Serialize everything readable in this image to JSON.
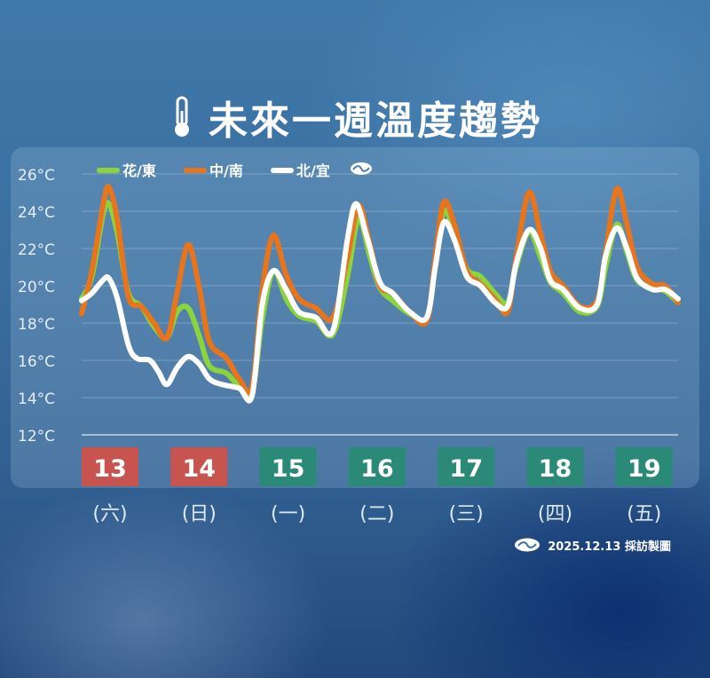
{
  "title": "未來一週溫度趨勢",
  "legend": [
    {
      "label": "花/東",
      "color": "#8cd43c"
    },
    {
      "label": "中/南",
      "color": "#e8741c"
    },
    {
      "label": "北/宜",
      "color": "#ffffff"
    }
  ],
  "footer_text": "2025.12.13 採訪製圖",
  "colors": {
    "weekend": "#c8544f",
    "weekday": "#2a8a77"
  },
  "chart_data": {
    "type": "line",
    "ylim": [
      12,
      26
    ],
    "yticks": [
      "12°C",
      "14°C",
      "16°C",
      "18°C",
      "20°C",
      "22°C",
      "24°C",
      "26°C"
    ],
    "x_range": [
      0,
      7
    ],
    "days": [
      {
        "date": "13",
        "weekday": "(六)",
        "weekend": true
      },
      {
        "date": "14",
        "weekday": "(日)",
        "weekend": true
      },
      {
        "date": "15",
        "weekday": "(一)",
        "weekend": false
      },
      {
        "date": "16",
        "weekday": "(二)",
        "weekend": false
      },
      {
        "date": "17",
        "weekday": "(三)",
        "weekend": false
      },
      {
        "date": "18",
        "weekday": "(四)",
        "weekend": false
      },
      {
        "date": "19",
        "weekday": "(五)",
        "weekend": false
      }
    ],
    "series": [
      {
        "name": "花/東",
        "color": "#8cd43c",
        "points": [
          [
            0,
            19.3
          ],
          [
            0.12,
            20.5
          ],
          [
            0.25,
            23.8
          ],
          [
            0.32,
            24.4
          ],
          [
            0.42,
            22.8
          ],
          [
            0.55,
            19.6
          ],
          [
            0.7,
            18.9
          ],
          [
            0.85,
            17.8
          ],
          [
            1.0,
            17.2
          ],
          [
            1.12,
            18.6
          ],
          [
            1.25,
            18.8
          ],
          [
            1.38,
            17.3
          ],
          [
            1.5,
            15.7
          ],
          [
            1.7,
            15.3
          ],
          [
            1.85,
            14.6
          ],
          [
            2.0,
            14.3
          ],
          [
            2.12,
            18.2
          ],
          [
            2.25,
            20.8
          ],
          [
            2.4,
            19.3
          ],
          [
            2.55,
            18.4
          ],
          [
            2.75,
            18.1
          ],
          [
            2.95,
            17.4
          ],
          [
            3.12,
            20.5
          ],
          [
            3.25,
            23.6
          ],
          [
            3.38,
            21.6
          ],
          [
            3.5,
            19.9
          ],
          [
            3.65,
            19.2
          ],
          [
            3.85,
            18.5
          ],
          [
            4.05,
            18.3
          ],
          [
            4.15,
            21.0
          ],
          [
            4.25,
            24.0
          ],
          [
            4.38,
            22.8
          ],
          [
            4.52,
            20.9
          ],
          [
            4.68,
            20.5
          ],
          [
            4.85,
            19.6
          ],
          [
            5.0,
            19.1
          ],
          [
            5.1,
            21.0
          ],
          [
            5.25,
            22.9
          ],
          [
            5.38,
            21.6
          ],
          [
            5.5,
            20.2
          ],
          [
            5.65,
            19.6
          ],
          [
            5.85,
            18.6
          ],
          [
            6.05,
            18.9
          ],
          [
            6.15,
            21.0
          ],
          [
            6.28,
            23.3
          ],
          [
            6.4,
            21.8
          ],
          [
            6.52,
            20.3
          ],
          [
            6.7,
            19.9
          ],
          [
            6.85,
            19.7
          ],
          [
            7.0,
            19.1
          ]
        ]
      },
      {
        "name": "中/南",
        "color": "#e8741c",
        "points": [
          [
            0,
            18.5
          ],
          [
            0.12,
            20.8
          ],
          [
            0.25,
            24.3
          ],
          [
            0.32,
            25.3
          ],
          [
            0.42,
            23.5
          ],
          [
            0.55,
            19.4
          ],
          [
            0.7,
            18.9
          ],
          [
            0.85,
            18.0
          ],
          [
            1.0,
            17.2
          ],
          [
            1.12,
            19.6
          ],
          [
            1.25,
            22.2
          ],
          [
            1.38,
            19.9
          ],
          [
            1.5,
            17.0
          ],
          [
            1.7,
            16.1
          ],
          [
            1.85,
            15.0
          ],
          [
            2.0,
            14.6
          ],
          [
            2.12,
            19.8
          ],
          [
            2.25,
            22.7
          ],
          [
            2.4,
            20.6
          ],
          [
            2.55,
            19.3
          ],
          [
            2.75,
            18.8
          ],
          [
            2.95,
            18.3
          ],
          [
            3.12,
            21.5
          ],
          [
            3.25,
            24.3
          ],
          [
            3.38,
            22.3
          ],
          [
            3.5,
            20.0
          ],
          [
            3.65,
            19.6
          ],
          [
            3.85,
            18.6
          ],
          [
            4.05,
            18.1
          ],
          [
            4.15,
            21.5
          ],
          [
            4.25,
            24.5
          ],
          [
            4.38,
            23.2
          ],
          [
            4.52,
            20.8
          ],
          [
            4.68,
            20.1
          ],
          [
            4.85,
            19.3
          ],
          [
            5.0,
            18.6
          ],
          [
            5.1,
            21.5
          ],
          [
            5.25,
            25.0
          ],
          [
            5.38,
            22.9
          ],
          [
            5.5,
            20.8
          ],
          [
            5.65,
            20.0
          ],
          [
            5.85,
            18.9
          ],
          [
            6.05,
            19.2
          ],
          [
            6.15,
            21.8
          ],
          [
            6.28,
            25.2
          ],
          [
            6.4,
            23.3
          ],
          [
            6.52,
            21.0
          ],
          [
            6.7,
            20.1
          ],
          [
            6.85,
            20.0
          ],
          [
            7.0,
            19.1
          ]
        ]
      },
      {
        "name": "北/宜",
        "color": "#ffffff",
        "points": [
          [
            0,
            19.2
          ],
          [
            0.12,
            19.6
          ],
          [
            0.25,
            20.3
          ],
          [
            0.32,
            20.4
          ],
          [
            0.42,
            19.3
          ],
          [
            0.55,
            16.8
          ],
          [
            0.65,
            16.1
          ],
          [
            0.8,
            16.0
          ],
          [
            0.9,
            15.4
          ],
          [
            1.0,
            14.7
          ],
          [
            1.12,
            15.6
          ],
          [
            1.25,
            16.2
          ],
          [
            1.38,
            15.8
          ],
          [
            1.5,
            15.0
          ],
          [
            1.65,
            14.7
          ],
          [
            1.85,
            14.5
          ],
          [
            2.0,
            14.1
          ],
          [
            2.12,
            19.0
          ],
          [
            2.25,
            20.8
          ],
          [
            2.4,
            19.8
          ],
          [
            2.55,
            18.6
          ],
          [
            2.75,
            18.3
          ],
          [
            2.95,
            17.6
          ],
          [
            3.12,
            22.5
          ],
          [
            3.22,
            24.4
          ],
          [
            3.35,
            22.6
          ],
          [
            3.5,
            20.2
          ],
          [
            3.65,
            19.6
          ],
          [
            3.85,
            18.6
          ],
          [
            4.05,
            18.3
          ],
          [
            4.15,
            21.0
          ],
          [
            4.25,
            23.4
          ],
          [
            4.38,
            22.4
          ],
          [
            4.52,
            20.5
          ],
          [
            4.68,
            20.0
          ],
          [
            4.85,
            19.1
          ],
          [
            5.0,
            18.9
          ],
          [
            5.1,
            21.2
          ],
          [
            5.25,
            23.0
          ],
          [
            5.38,
            22.1
          ],
          [
            5.5,
            20.3
          ],
          [
            5.65,
            19.8
          ],
          [
            5.85,
            18.8
          ],
          [
            6.05,
            19.0
          ],
          [
            6.15,
            21.6
          ],
          [
            6.28,
            23.1
          ],
          [
            6.4,
            22.0
          ],
          [
            6.52,
            20.4
          ],
          [
            6.7,
            19.8
          ],
          [
            6.85,
            19.8
          ],
          [
            7.0,
            19.3
          ]
        ]
      }
    ]
  }
}
